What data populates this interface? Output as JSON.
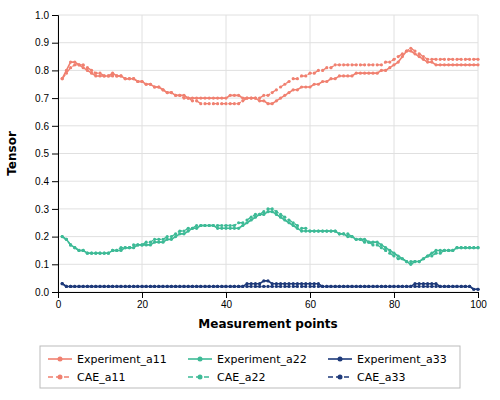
{
  "chart_data": {
    "type": "line",
    "xlabel": "Measurement points",
    "ylabel": "Tensor",
    "x": [
      1,
      2,
      3,
      4,
      5,
      6,
      7,
      8,
      9,
      10,
      11,
      12,
      13,
      14,
      15,
      16,
      17,
      18,
      19,
      20,
      21,
      22,
      23,
      24,
      25,
      26,
      27,
      28,
      29,
      30,
      31,
      32,
      33,
      34,
      35,
      36,
      37,
      38,
      39,
      40,
      41,
      42,
      43,
      44,
      45,
      46,
      47,
      48,
      49,
      50,
      51,
      52,
      53,
      54,
      55,
      56,
      57,
      58,
      59,
      60,
      61,
      62,
      63,
      64,
      65,
      66,
      67,
      68,
      69,
      70,
      71,
      72,
      73,
      74,
      75,
      76,
      77,
      78,
      79,
      80,
      81,
      82,
      83,
      84,
      85,
      86,
      87,
      88,
      89,
      90,
      91,
      92,
      93,
      94,
      95,
      96,
      97,
      98,
      99,
      100
    ],
    "xlim": [
      0,
      100
    ],
    "ylim": [
      0,
      1
    ],
    "xticks": [
      0,
      20,
      40,
      60,
      80,
      100
    ],
    "yticks": [
      {
        "value": 0,
        "label": "0.0"
      },
      0.1,
      0.2,
      0.3,
      0.4,
      0.5,
      0.6,
      0.7,
      0.8,
      0.9,
      {
        "value": 1,
        "label": "1.0"
      }
    ],
    "grid": true,
    "legend": "bottom",
    "series": [
      {
        "name": "Experiment_a11",
        "color": "#f08070",
        "line_style": "solid",
        "marker": "circle",
        "values": [
          0.77,
          0.8,
          0.83,
          0.83,
          0.82,
          0.81,
          0.8,
          0.79,
          0.78,
          0.78,
          0.78,
          0.78,
          0.79,
          0.78,
          0.78,
          0.77,
          0.77,
          0.77,
          0.76,
          0.76,
          0.75,
          0.75,
          0.74,
          0.74,
          0.73,
          0.72,
          0.72,
          0.71,
          0.71,
          0.71,
          0.7,
          0.7,
          0.7,
          0.7,
          0.7,
          0.7,
          0.7,
          0.7,
          0.7,
          0.7,
          0.71,
          0.71,
          0.71,
          0.7,
          0.7,
          0.7,
          0.7,
          0.69,
          0.69,
          0.68,
          0.68,
          0.69,
          0.7,
          0.71,
          0.72,
          0.73,
          0.73,
          0.74,
          0.74,
          0.74,
          0.75,
          0.75,
          0.76,
          0.76,
          0.77,
          0.77,
          0.78,
          0.78,
          0.78,
          0.78,
          0.79,
          0.79,
          0.79,
          0.79,
          0.79,
          0.79,
          0.8,
          0.8,
          0.81,
          0.82,
          0.83,
          0.85,
          0.87,
          0.87,
          0.86,
          0.85,
          0.84,
          0.83,
          0.83,
          0.82,
          0.82,
          0.82,
          0.82,
          0.82,
          0.82,
          0.82,
          0.82,
          0.82,
          0.82,
          0.82
        ]
      },
      {
        "name": "Experiment_a22",
        "color": "#3dba96",
        "line_style": "solid",
        "marker": "circle",
        "values": [
          0.2,
          0.19,
          0.17,
          0.16,
          0.15,
          0.15,
          0.14,
          0.14,
          0.14,
          0.14,
          0.14,
          0.14,
          0.15,
          0.15,
          0.15,
          0.16,
          0.16,
          0.16,
          0.17,
          0.17,
          0.17,
          0.17,
          0.18,
          0.18,
          0.18,
          0.19,
          0.19,
          0.2,
          0.21,
          0.21,
          0.22,
          0.23,
          0.23,
          0.24,
          0.24,
          0.24,
          0.24,
          0.23,
          0.23,
          0.23,
          0.23,
          0.23,
          0.23,
          0.24,
          0.25,
          0.26,
          0.27,
          0.28,
          0.28,
          0.29,
          0.29,
          0.28,
          0.27,
          0.26,
          0.25,
          0.24,
          0.23,
          0.22,
          0.22,
          0.22,
          0.22,
          0.22,
          0.22,
          0.22,
          0.22,
          0.22,
          0.21,
          0.21,
          0.2,
          0.2,
          0.19,
          0.19,
          0.19,
          0.18,
          0.18,
          0.18,
          0.17,
          0.16,
          0.15,
          0.14,
          0.13,
          0.12,
          0.11,
          0.1,
          0.11,
          0.11,
          0.12,
          0.13,
          0.14,
          0.15,
          0.15,
          0.15,
          0.15,
          0.15,
          0.16,
          0.16,
          0.16,
          0.16,
          0.16,
          0.16
        ]
      },
      {
        "name": "Experiment_a33",
        "color": "#1e3a7a",
        "line_style": "solid",
        "marker": "circle",
        "values": [
          0.03,
          0.02,
          0.02,
          0.02,
          0.02,
          0.02,
          0.02,
          0.02,
          0.02,
          0.02,
          0.02,
          0.02,
          0.02,
          0.02,
          0.02,
          0.02,
          0.02,
          0.02,
          0.02,
          0.02,
          0.02,
          0.02,
          0.02,
          0.02,
          0.02,
          0.02,
          0.02,
          0.02,
          0.02,
          0.02,
          0.02,
          0.02,
          0.02,
          0.02,
          0.02,
          0.02,
          0.02,
          0.02,
          0.02,
          0.02,
          0.02,
          0.02,
          0.02,
          0.02,
          0.03,
          0.03,
          0.03,
          0.03,
          0.04,
          0.04,
          0.03,
          0.03,
          0.03,
          0.03,
          0.03,
          0.03,
          0.03,
          0.03,
          0.03,
          0.03,
          0.03,
          0.03,
          0.02,
          0.02,
          0.02,
          0.02,
          0.02,
          0.02,
          0.02,
          0.02,
          0.02,
          0.02,
          0.02,
          0.02,
          0.02,
          0.02,
          0.02,
          0.02,
          0.02,
          0.02,
          0.02,
          0.02,
          0.02,
          0.02,
          0.03,
          0.03,
          0.03,
          0.03,
          0.03,
          0.03,
          0.02,
          0.02,
          0.02,
          0.02,
          0.02,
          0.02,
          0.02,
          0.02,
          0.01,
          0.01
        ]
      },
      {
        "name": "CAE_a11",
        "color": "#f08070",
        "line_style": "dashed",
        "marker": "circle",
        "values": [
          0.77,
          0.79,
          0.81,
          0.82,
          0.82,
          0.82,
          0.81,
          0.8,
          0.79,
          0.79,
          0.78,
          0.78,
          0.78,
          0.78,
          0.78,
          0.77,
          0.77,
          0.77,
          0.76,
          0.76,
          0.75,
          0.75,
          0.74,
          0.74,
          0.73,
          0.72,
          0.72,
          0.71,
          0.71,
          0.7,
          0.7,
          0.69,
          0.69,
          0.68,
          0.68,
          0.68,
          0.68,
          0.68,
          0.68,
          0.68,
          0.68,
          0.68,
          0.68,
          0.69,
          0.7,
          0.7,
          0.7,
          0.7,
          0.71,
          0.71,
          0.72,
          0.73,
          0.74,
          0.75,
          0.76,
          0.77,
          0.77,
          0.78,
          0.78,
          0.79,
          0.79,
          0.8,
          0.8,
          0.81,
          0.81,
          0.82,
          0.82,
          0.82,
          0.82,
          0.82,
          0.82,
          0.82,
          0.82,
          0.82,
          0.82,
          0.82,
          0.82,
          0.83,
          0.83,
          0.84,
          0.85,
          0.86,
          0.87,
          0.88,
          0.87,
          0.86,
          0.85,
          0.84,
          0.84,
          0.84,
          0.84,
          0.84,
          0.84,
          0.84,
          0.84,
          0.84,
          0.84,
          0.84,
          0.84,
          0.84
        ]
      },
      {
        "name": "CAE_a22",
        "color": "#3dba96",
        "line_style": "dashed",
        "marker": "circle",
        "values": [
          0.2,
          0.19,
          0.17,
          0.16,
          0.15,
          0.15,
          0.14,
          0.14,
          0.14,
          0.14,
          0.14,
          0.14,
          0.15,
          0.15,
          0.16,
          0.16,
          0.16,
          0.17,
          0.17,
          0.17,
          0.18,
          0.18,
          0.19,
          0.19,
          0.19,
          0.2,
          0.2,
          0.21,
          0.22,
          0.22,
          0.23,
          0.23,
          0.24,
          0.24,
          0.24,
          0.24,
          0.24,
          0.24,
          0.24,
          0.24,
          0.24,
          0.24,
          0.25,
          0.25,
          0.26,
          0.27,
          0.28,
          0.28,
          0.29,
          0.3,
          0.3,
          0.29,
          0.28,
          0.27,
          0.26,
          0.25,
          0.24,
          0.23,
          0.23,
          0.22,
          0.22,
          0.22,
          0.22,
          0.22,
          0.22,
          0.22,
          0.21,
          0.21,
          0.21,
          0.2,
          0.19,
          0.19,
          0.18,
          0.18,
          0.17,
          0.17,
          0.16,
          0.15,
          0.14,
          0.13,
          0.12,
          0.12,
          0.11,
          0.11,
          0.11,
          0.11,
          0.12,
          0.13,
          0.13,
          0.14,
          0.14,
          0.15,
          0.15,
          0.15,
          0.16,
          0.16,
          0.16,
          0.16,
          0.16,
          0.16
        ]
      },
      {
        "name": "CAE_a33",
        "color": "#1e3a7a",
        "line_style": "dashed",
        "marker": "circle",
        "values": [
          0.03,
          0.02,
          0.02,
          0.02,
          0.02,
          0.02,
          0.02,
          0.02,
          0.02,
          0.02,
          0.02,
          0.02,
          0.02,
          0.02,
          0.02,
          0.02,
          0.02,
          0.02,
          0.02,
          0.02,
          0.02,
          0.02,
          0.02,
          0.02,
          0.02,
          0.02,
          0.02,
          0.02,
          0.02,
          0.02,
          0.02,
          0.02,
          0.02,
          0.02,
          0.02,
          0.02,
          0.02,
          0.02,
          0.02,
          0.02,
          0.02,
          0.02,
          0.02,
          0.02,
          0.02,
          0.02,
          0.02,
          0.02,
          0.02,
          0.02,
          0.02,
          0.02,
          0.02,
          0.02,
          0.02,
          0.02,
          0.02,
          0.02,
          0.02,
          0.02,
          0.02,
          0.02,
          0.02,
          0.02,
          0.02,
          0.02,
          0.02,
          0.02,
          0.02,
          0.02,
          0.02,
          0.02,
          0.02,
          0.02,
          0.02,
          0.02,
          0.02,
          0.02,
          0.02,
          0.02,
          0.02,
          0.02,
          0.02,
          0.02,
          0.02,
          0.02,
          0.02,
          0.02,
          0.02,
          0.02,
          0.02,
          0.02,
          0.02,
          0.02,
          0.02,
          0.02,
          0.02,
          0.02,
          0.01,
          0.01
        ]
      }
    ]
  }
}
